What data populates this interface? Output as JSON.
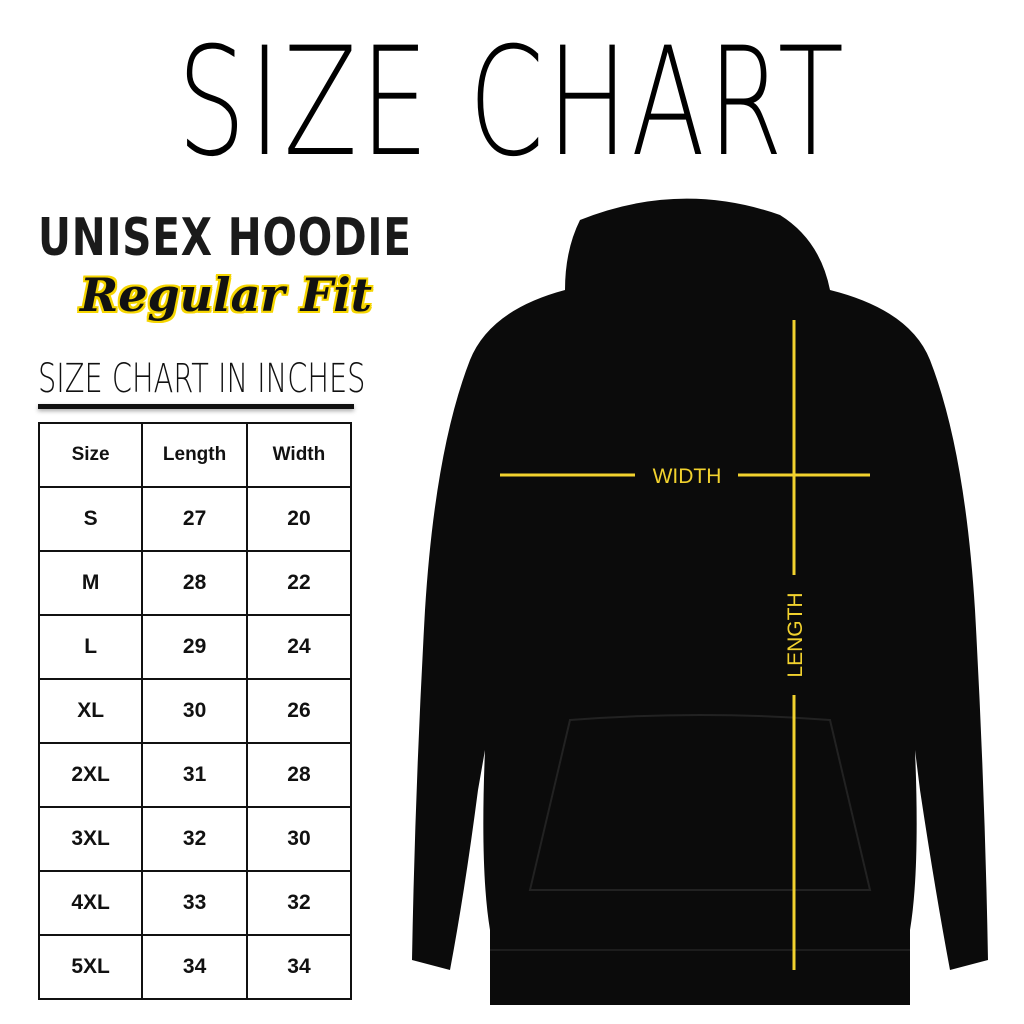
{
  "title": "SIZE CHART",
  "product": "UNISEX HOODIE",
  "fit": "Regular Fit",
  "unit_heading": "SIZE CHART IN INCHES",
  "table": {
    "headers": [
      "Size",
      "Length",
      "Width"
    ],
    "rows": [
      [
        "S",
        "27",
        "20"
      ],
      [
        "M",
        "28",
        "22"
      ],
      [
        "L",
        "29",
        "24"
      ],
      [
        "XL",
        "30",
        "26"
      ],
      [
        "2XL",
        "31",
        "28"
      ],
      [
        "3XL",
        "32",
        "30"
      ],
      [
        "4XL",
        "33",
        "32"
      ],
      [
        "5XL",
        "34",
        "34"
      ]
    ]
  },
  "diagram": {
    "width_label": "WIDTH",
    "length_label": "LENGTH",
    "line_color": "#f2d22e",
    "garment_color": "#0b0b0b"
  }
}
